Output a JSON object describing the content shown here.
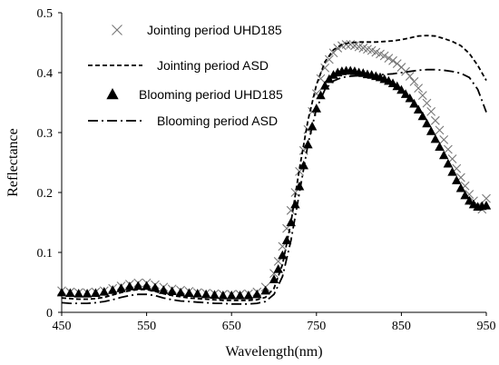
{
  "chart_data": {
    "type": "line",
    "xlabel": "Wavelength(nm)",
    "ylabel": "Reflectance",
    "xlim": [
      450,
      950
    ],
    "ylim": [
      0,
      0.5
    ],
    "x_ticks": [
      450,
      550,
      650,
      750,
      850,
      950
    ],
    "y_ticks": [
      0,
      0.1,
      0.2,
      0.3,
      0.4,
      0.5
    ],
    "y_tick_labels": [
      "0",
      "0.1",
      "0.2",
      "0.3",
      "0.4",
      "0.5"
    ],
    "grid": false,
    "legend_position": "top-left",
    "series": [
      {
        "name": "Jointing period UHD185",
        "marker": "x",
        "line": "none",
        "color": "#777777",
        "x": [
          450,
          460,
          470,
          480,
          490,
          500,
          510,
          520,
          530,
          540,
          550,
          560,
          570,
          580,
          590,
          600,
          610,
          620,
          630,
          640,
          650,
          660,
          670,
          680,
          690,
          700,
          705,
          710,
          715,
          720,
          725,
          730,
          735,
          740,
          745,
          750,
          755,
          760,
          765,
          770,
          775,
          780,
          785,
          790,
          795,
          800,
          805,
          810,
          815,
          820,
          825,
          830,
          835,
          840,
          845,
          850,
          855,
          860,
          865,
          870,
          875,
          880,
          885,
          890,
          895,
          900,
          905,
          910,
          915,
          920,
          925,
          930,
          935,
          940,
          945,
          950
        ],
        "y": [
          0.036,
          0.034,
          0.033,
          0.033,
          0.034,
          0.036,
          0.04,
          0.044,
          0.047,
          0.049,
          0.049,
          0.046,
          0.042,
          0.039,
          0.037,
          0.035,
          0.033,
          0.032,
          0.031,
          0.03,
          0.03,
          0.03,
          0.031,
          0.034,
          0.042,
          0.065,
          0.085,
          0.11,
          0.14,
          0.17,
          0.2,
          0.235,
          0.27,
          0.305,
          0.335,
          0.365,
          0.39,
          0.408,
          0.422,
          0.433,
          0.441,
          0.445,
          0.447,
          0.447,
          0.445,
          0.443,
          0.441,
          0.439,
          0.437,
          0.434,
          0.431,
          0.428,
          0.424,
          0.42,
          0.415,
          0.409,
          0.402,
          0.394,
          0.385,
          0.374,
          0.362,
          0.349,
          0.335,
          0.32,
          0.304,
          0.288,
          0.272,
          0.256,
          0.24,
          0.225,
          0.211,
          0.197,
          0.186,
          0.177,
          0.172,
          0.19
        ]
      },
      {
        "name": "Jointing period ASD",
        "marker": "none",
        "line": "dashed",
        "color": "#000000",
        "x": [
          450,
          460,
          470,
          480,
          490,
          500,
          510,
          520,
          530,
          540,
          550,
          560,
          570,
          580,
          590,
          600,
          610,
          620,
          630,
          640,
          650,
          660,
          670,
          680,
          690,
          700,
          710,
          720,
          730,
          740,
          750,
          760,
          770,
          780,
          790,
          800,
          810,
          820,
          830,
          840,
          850,
          860,
          870,
          880,
          890,
          900,
          910,
          920,
          930,
          940,
          950
        ],
        "y": [
          0.024,
          0.023,
          0.022,
          0.022,
          0.023,
          0.025,
          0.029,
          0.033,
          0.036,
          0.038,
          0.038,
          0.035,
          0.031,
          0.028,
          0.026,
          0.024,
          0.023,
          0.022,
          0.021,
          0.02,
          0.02,
          0.02,
          0.02,
          0.021,
          0.025,
          0.04,
          0.08,
          0.15,
          0.24,
          0.32,
          0.38,
          0.418,
          0.438,
          0.447,
          0.45,
          0.451,
          0.451,
          0.451,
          0.452,
          0.453,
          0.455,
          0.458,
          0.461,
          0.462,
          0.461,
          0.457,
          0.452,
          0.445,
          0.432,
          0.412,
          0.387
        ]
      },
      {
        "name": "Blooming period UHD185",
        "marker": "triangle",
        "line": "none",
        "color": "#000000",
        "x": [
          450,
          460,
          470,
          480,
          490,
          500,
          510,
          520,
          530,
          540,
          550,
          560,
          570,
          580,
          590,
          600,
          610,
          620,
          630,
          640,
          650,
          660,
          670,
          680,
          690,
          700,
          705,
          710,
          715,
          720,
          725,
          730,
          735,
          740,
          745,
          750,
          755,
          760,
          765,
          770,
          775,
          780,
          785,
          790,
          795,
          800,
          805,
          810,
          815,
          820,
          825,
          830,
          835,
          840,
          845,
          850,
          855,
          860,
          865,
          870,
          875,
          880,
          885,
          890,
          895,
          900,
          905,
          910,
          915,
          920,
          925,
          930,
          935,
          940,
          945,
          950
        ],
        "y": [
          0.033,
          0.032,
          0.031,
          0.031,
          0.032,
          0.034,
          0.037,
          0.04,
          0.043,
          0.044,
          0.044,
          0.041,
          0.037,
          0.035,
          0.033,
          0.032,
          0.031,
          0.03,
          0.029,
          0.028,
          0.028,
          0.028,
          0.028,
          0.03,
          0.036,
          0.055,
          0.072,
          0.095,
          0.12,
          0.15,
          0.18,
          0.21,
          0.245,
          0.28,
          0.31,
          0.34,
          0.362,
          0.378,
          0.389,
          0.396,
          0.4,
          0.402,
          0.403,
          0.403,
          0.402,
          0.4,
          0.399,
          0.397,
          0.396,
          0.394,
          0.392,
          0.389,
          0.386,
          0.382,
          0.377,
          0.371,
          0.364,
          0.357,
          0.348,
          0.338,
          0.327,
          0.315,
          0.302,
          0.289,
          0.276,
          0.262,
          0.248,
          0.234,
          0.22,
          0.207,
          0.195,
          0.186,
          0.18,
          0.176,
          0.177,
          0.178
        ]
      },
      {
        "name": "Blooming period ASD",
        "marker": "none",
        "line": "dash-dot",
        "color": "#000000",
        "x": [
          450,
          460,
          470,
          480,
          490,
          500,
          510,
          520,
          530,
          540,
          550,
          560,
          570,
          580,
          590,
          600,
          610,
          620,
          630,
          640,
          650,
          660,
          670,
          680,
          690,
          700,
          710,
          720,
          730,
          740,
          750,
          760,
          770,
          780,
          790,
          800,
          810,
          820,
          830,
          840,
          850,
          860,
          870,
          880,
          890,
          900,
          910,
          920,
          930,
          940,
          950
        ],
        "y": [
          0.016,
          0.015,
          0.015,
          0.015,
          0.016,
          0.018,
          0.021,
          0.025,
          0.028,
          0.03,
          0.03,
          0.028,
          0.024,
          0.021,
          0.019,
          0.018,
          0.017,
          0.016,
          0.015,
          0.015,
          0.014,
          0.014,
          0.014,
          0.015,
          0.018,
          0.03,
          0.06,
          0.12,
          0.2,
          0.28,
          0.34,
          0.372,
          0.386,
          0.392,
          0.394,
          0.395,
          0.395,
          0.396,
          0.397,
          0.398,
          0.4,
          0.402,
          0.404,
          0.405,
          0.405,
          0.404,
          0.402,
          0.399,
          0.392,
          0.372,
          0.334
        ]
      }
    ]
  }
}
